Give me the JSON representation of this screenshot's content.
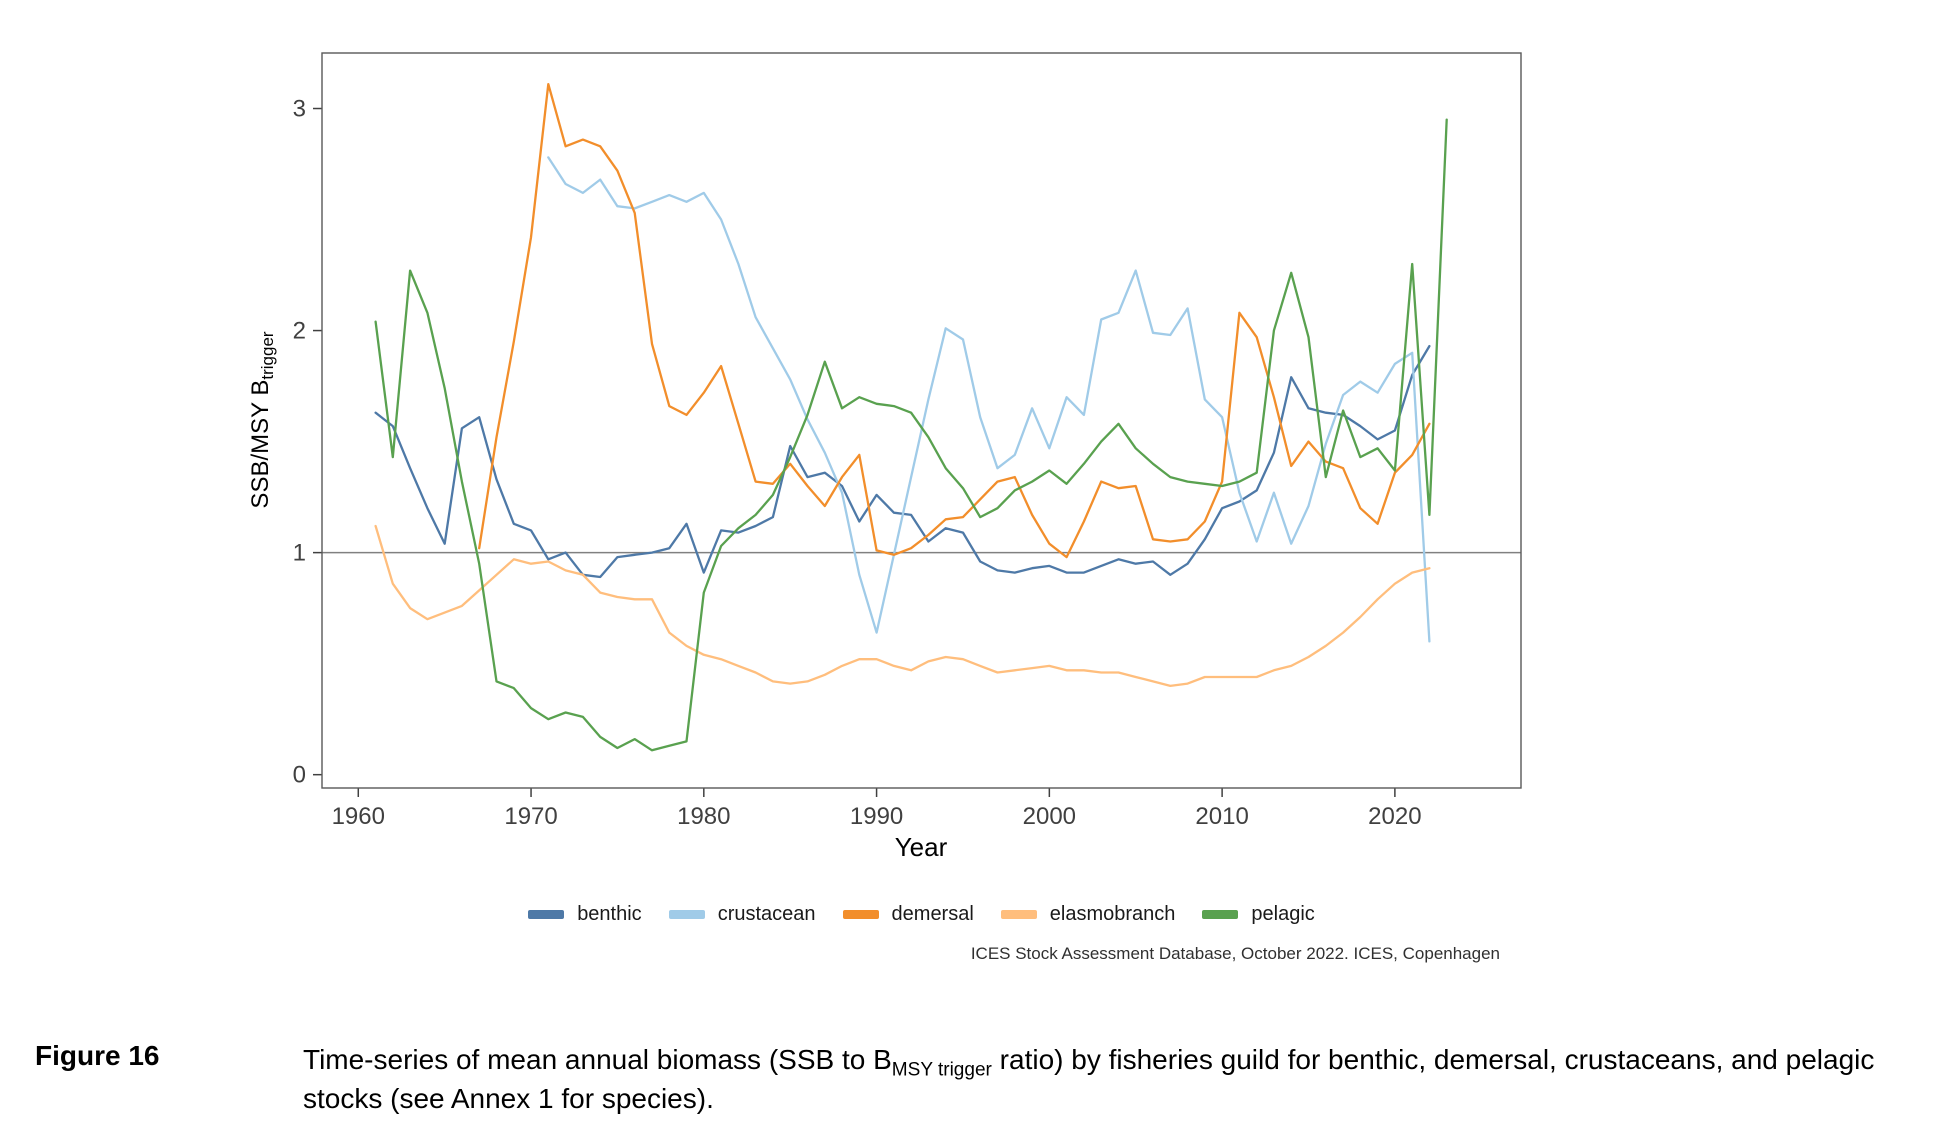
{
  "chart_data": {
    "type": "line",
    "title": "",
    "xlabel": "Year",
    "ylabel_main": "SSB/MSY B",
    "ylabel_sub": "trigger",
    "x_ticks": [
      1960,
      1970,
      1980,
      1990,
      2000,
      2010,
      2020
    ],
    "y_ticks": [
      0,
      1,
      2,
      3
    ],
    "xlim": [
      1957.9,
      2027.3
    ],
    "ylim": [
      -0.06,
      3.25
    ],
    "reference_line_y": 1,
    "grid": false,
    "legend_position": "bottom",
    "panel_border_color": "#595959",
    "reference_line_color": "#808080",
    "tick_label_color": "#404040",
    "series": [
      {
        "name": "benthic",
        "color": "#4e79a7",
        "start_year": 1961,
        "values": [
          1.63,
          1.57,
          1.38,
          1.2,
          1.04,
          1.56,
          1.61,
          1.33,
          1.13,
          1.1,
          0.97,
          1.0,
          0.9,
          0.89,
          0.98,
          0.99,
          1.0,
          1.02,
          1.13,
          0.91,
          1.1,
          1.09,
          1.12,
          1.16,
          1.48,
          1.34,
          1.36,
          1.3,
          1.14,
          1.26,
          1.18,
          1.17,
          1.05,
          1.11,
          1.09,
          0.96,
          0.92,
          0.91,
          0.93,
          0.94,
          0.91,
          0.91,
          0.94,
          0.97,
          0.95,
          0.96,
          0.9,
          0.95,
          1.06,
          1.2,
          1.23,
          1.28,
          1.45,
          1.79,
          1.65,
          1.63,
          1.62,
          1.57,
          1.51,
          1.55,
          1.8,
          1.93
        ]
      },
      {
        "name": "crustacean",
        "color": "#a0cbe8",
        "start_year": 1971,
        "values": [
          2.78,
          2.66,
          2.62,
          2.68,
          2.56,
          2.55,
          2.58,
          2.61,
          2.58,
          2.62,
          2.5,
          2.3,
          2.06,
          1.92,
          1.78,
          1.6,
          1.45,
          1.27,
          0.9,
          0.64,
          0.99,
          1.34,
          1.69,
          2.01,
          1.96,
          1.61,
          1.38,
          1.44,
          1.65,
          1.47,
          1.7,
          1.62,
          2.05,
          2.08,
          2.27,
          1.99,
          1.98,
          2.1,
          1.69,
          1.61,
          1.27,
          1.05,
          1.27,
          1.04,
          1.21,
          1.49,
          1.71,
          1.77,
          1.72,
          1.85,
          1.9,
          0.6
        ]
      },
      {
        "name": "demersal",
        "color": "#f28e2b",
        "start_year": 1967,
        "values": [
          1.02,
          1.52,
          1.95,
          2.42,
          3.11,
          2.83,
          2.86,
          2.83,
          2.72,
          2.53,
          1.94,
          1.66,
          1.62,
          1.72,
          1.84,
          1.58,
          1.32,
          1.31,
          1.4,
          1.3,
          1.21,
          1.34,
          1.44,
          1.01,
          0.99,
          1.02,
          1.08,
          1.15,
          1.16,
          1.24,
          1.32,
          1.34,
          1.17,
          1.04,
          0.98,
          1.14,
          1.32,
          1.29,
          1.3,
          1.06,
          1.05,
          1.06,
          1.14,
          1.32,
          2.08,
          1.97,
          1.7,
          1.39,
          1.5,
          1.41,
          1.38,
          1.2,
          1.13,
          1.36,
          1.44,
          1.58
        ]
      },
      {
        "name": "elasmobranch",
        "color": "#ffbe7d",
        "start_year": 1961,
        "values": [
          1.12,
          0.86,
          0.75,
          0.7,
          0.73,
          0.76,
          0.83,
          0.9,
          0.97,
          0.95,
          0.96,
          0.92,
          0.9,
          0.82,
          0.8,
          0.79,
          0.79,
          0.64,
          0.58,
          0.54,
          0.52,
          0.49,
          0.46,
          0.42,
          0.41,
          0.42,
          0.45,
          0.49,
          0.52,
          0.52,
          0.49,
          0.47,
          0.51,
          0.53,
          0.52,
          0.49,
          0.46,
          0.47,
          0.48,
          0.49,
          0.47,
          0.47,
          0.46,
          0.46,
          0.44,
          0.42,
          0.4,
          0.41,
          0.44,
          0.44,
          0.44,
          0.44,
          0.47,
          0.49,
          0.53,
          0.58,
          0.64,
          0.71,
          0.79,
          0.86,
          0.91,
          0.93
        ]
      },
      {
        "name": "pelagic",
        "color": "#59a14f",
        "start_year": 1961,
        "values": [
          2.04,
          1.43,
          2.27,
          2.08,
          1.74,
          1.32,
          0.95,
          0.42,
          0.39,
          0.3,
          0.25,
          0.28,
          0.26,
          0.17,
          0.12,
          0.16,
          0.11,
          0.13,
          0.15,
          0.82,
          1.03,
          1.11,
          1.17,
          1.26,
          1.43,
          1.62,
          1.86,
          1.65,
          1.7,
          1.67,
          1.66,
          1.63,
          1.52,
          1.38,
          1.29,
          1.16,
          1.2,
          1.28,
          1.32,
          1.37,
          1.31,
          1.4,
          1.5,
          1.58,
          1.47,
          1.4,
          1.34,
          1.32,
          1.31,
          1.3,
          1.32,
          1.36,
          2.0,
          2.26,
          1.97,
          1.34,
          1.64,
          1.43,
          1.47,
          1.37,
          2.3,
          1.17,
          2.95
        ]
      }
    ]
  },
  "legend": {
    "items": [
      {
        "label": "benthic",
        "color": "#4e79a7"
      },
      {
        "label": "crustacean",
        "color": "#a0cbe8"
      },
      {
        "label": "demersal",
        "color": "#f28e2b"
      },
      {
        "label": "elasmobranch",
        "color": "#ffbe7d"
      },
      {
        "label": "pelagic",
        "color": "#59a14f"
      }
    ]
  },
  "source_note": "ICES Stock Assessment Database, October 2022. ICES, Copenhagen",
  "caption": {
    "label": "Figure 16",
    "text_prefix": "Time-series of mean annual biomass (SSB to B",
    "text_sub": "MSY trigger",
    "text_suffix": " ratio) by fisheries guild for benthic, demersal, crustaceans, and pelagic stocks (see Annex 1 for species)."
  }
}
